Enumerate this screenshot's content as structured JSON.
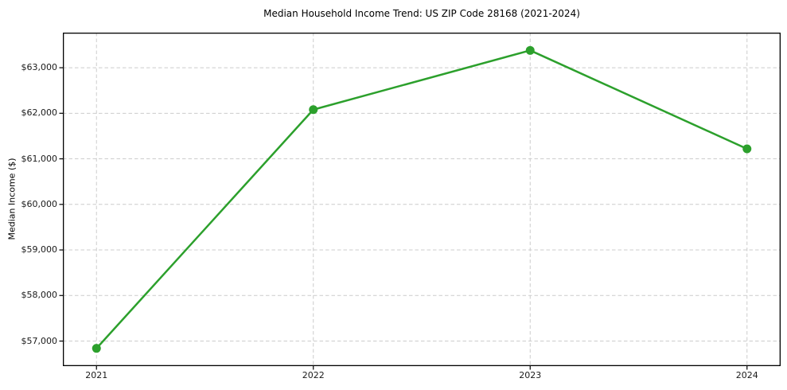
{
  "chart_data": {
    "type": "line",
    "title": "Median Household Income Trend: US ZIP Code 28168 (2021-2024)",
    "xlabel": "",
    "ylabel": "Median Income ($)",
    "x": [
      2021,
      2022,
      2023,
      2024
    ],
    "x_tick_labels": [
      "2021",
      "2022",
      "2023",
      "2024"
    ],
    "series": [
      {
        "name": "Median Household Income",
        "values": [
          56840,
          62080,
          63380,
          61220
        ]
      }
    ],
    "y_ticks": [
      57000,
      58000,
      59000,
      60000,
      61000,
      62000,
      63000
    ],
    "y_tick_labels": [
      "$57,000",
      "$58,000",
      "$59,000",
      "$60,000",
      "$61,000",
      "$62,000",
      "$63,000"
    ],
    "xlim": [
      2020.845,
      2024.155
    ],
    "ylim": [
      56450,
      63770
    ],
    "grid": true,
    "grid_style": "dashed",
    "legend": false,
    "line_color": "#2ca02c",
    "marker": "circle",
    "marker_radius": 5.5,
    "line_width": 2.5,
    "grid_color": "#cccccc",
    "axis_color": "#000000",
    "background_color": "#ffffff"
  }
}
